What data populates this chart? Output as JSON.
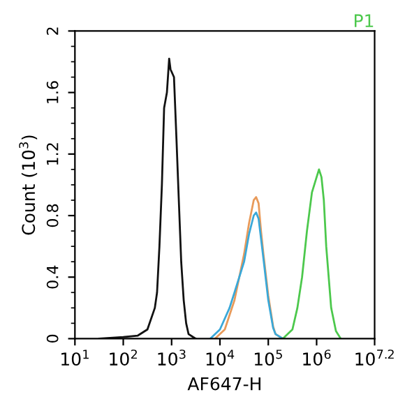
{
  "chart_data": {
    "type": "line",
    "title": "P1",
    "xlabel": "AF647-H",
    "ylabel": "Count (10$^{3}$)",
    "log": "x",
    "grid": false,
    "legend": false,
    "marker": "none",
    "line_style": "solid",
    "xlim": [
      10,
      15850000
    ],
    "ylim": [
      0,
      2
    ],
    "xticks": [
      {
        "value": 10,
        "label": "10$^{1}$"
      },
      {
        "value": 100,
        "label": "10$^{2}$"
      },
      {
        "value": 1000,
        "label": "10$^{3}$"
      },
      {
        "value": 10000,
        "label": "10$^{4}$"
      },
      {
        "value": 100000,
        "label": "10$^{5}$"
      },
      {
        "value": 1000000,
        "label": "10$^{6}$"
      },
      {
        "value": 15850000,
        "label": "10$^{7.2}$"
      }
    ],
    "yticks": [
      0,
      0.4,
      0.8,
      1.2,
      1.6,
      2
    ],
    "series": [
      {
        "color": "#111111",
        "x": [
          32,
          100,
          200,
          316,
          450,
          500,
          560,
          630,
          700,
          800,
          890,
          950,
          1120,
          1260,
          1410,
          1580,
          1780,
          2000,
          2240,
          2800,
          3160
        ],
        "values": [
          0,
          0.01,
          0.02,
          0.06,
          0.2,
          0.3,
          0.6,
          1.0,
          1.5,
          1.6,
          1.82,
          1.75,
          1.7,
          1.3,
          0.9,
          0.5,
          0.25,
          0.1,
          0.03,
          0.01,
          0
        ]
      },
      {
        "color": "#e89a5a",
        "x": [
          7900,
          12600,
          20000,
          31600,
          40000,
          50000,
          56000,
          63000,
          70800,
          79400,
          100000,
          126000,
          141000,
          200000
        ],
        "values": [
          0,
          0.06,
          0.25,
          0.55,
          0.75,
          0.9,
          0.92,
          0.88,
          0.7,
          0.55,
          0.28,
          0.08,
          0.03,
          0
        ]
      },
      {
        "color": "#3aa8d8",
        "x": [
          6300,
          10000,
          15800,
          20000,
          31600,
          40000,
          50000,
          56000,
          63000,
          70800,
          79400,
          100000,
          126000,
          141000,
          200000
        ],
        "values": [
          0,
          0.06,
          0.2,
          0.3,
          0.5,
          0.68,
          0.8,
          0.82,
          0.78,
          0.65,
          0.52,
          0.25,
          0.07,
          0.03,
          0
        ]
      },
      {
        "color": "#4cc84c",
        "x": [
          200000,
          316000,
          400000,
          500000,
          631000,
          800000,
          1000000,
          1120000,
          1260000,
          1410000,
          1580000,
          2000000,
          2510000,
          3160000
        ],
        "values": [
          0,
          0.06,
          0.2,
          0.4,
          0.7,
          0.95,
          1.05,
          1.1,
          1.05,
          0.9,
          0.6,
          0.2,
          0.05,
          0
        ]
      }
    ]
  }
}
